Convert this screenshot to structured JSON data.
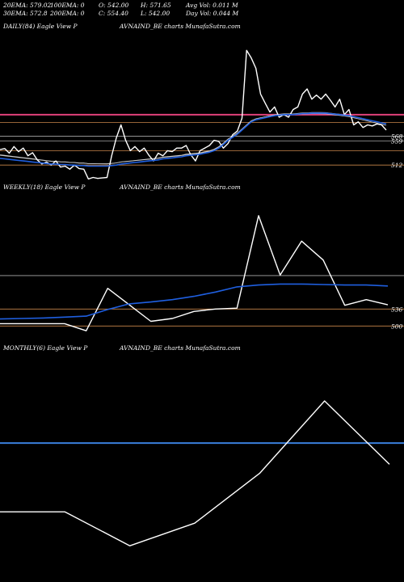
{
  "header": {
    "row1": [
      "20EMA: 579.02",
      "100EMA: 0",
      "O: 542.00",
      "H: 571.65",
      "Avg Vol: 0.011 M"
    ],
    "row2": [
      "30EMA: 572.8",
      "200EMA: 0",
      "C: 554.40",
      "L: 542.00",
      "Day Vol: 0.044 M"
    ]
  },
  "panels": {
    "daily": {
      "title": "DAILY(84) Eagle   View  P",
      "watermark": "AVNAIND_BE charts MunafaSutra.com"
    },
    "weekly": {
      "title": "WEEKLY(18) Eagle   View  P",
      "watermark": "AVNAIND_BE charts MunafaSutra.com"
    },
    "monthly": {
      "title": "MONTHLY(6) Eagle   View  P",
      "watermark": "AVNAIND_BE charts MunafaSutra.com"
    }
  },
  "colors": {
    "price": "#ffffff",
    "ema": "#1f5fe0",
    "resistance_daily": "#e0407a",
    "support": "#c8864a",
    "ema_white": "#cccccc",
    "grid_gray": "#aaaaaa",
    "monthly_band": "#3a7fdc"
  },
  "chart_data": [
    {
      "type": "line",
      "title": "DAILY(84)",
      "y_tick_labels": [
        "568",
        "559",
        "512"
      ],
      "ylim": [
        495,
        770
      ],
      "horizontal_levels": [
        {
          "value": 610,
          "color": "pink"
        },
        {
          "value": 595,
          "color": "brown"
        },
        {
          "value": 568,
          "color": "gray"
        },
        {
          "value": 559,
          "color": "gray"
        },
        {
          "value": 540,
          "color": "brown"
        },
        {
          "value": 512,
          "color": "brown"
        }
      ],
      "series": [
        {
          "values": [
            542,
            544,
            535,
            548,
            538,
            545,
            530,
            536,
            522,
            514,
            518,
            512,
            520,
            508,
            510,
            504,
            512,
            505,
            504,
            485,
            488,
            486,
            487,
            488,
            530,
            565,
            590,
            560,
            540,
            548,
            538,
            545,
            531,
            520,
            535,
            530,
            540,
            538,
            545,
            545,
            550,
            532,
            520,
            540,
            545,
            550,
            560,
            558,
            545,
            554,
            571,
            578,
            603,
            735,
            720,
            700,
            650,
            632,
            615,
            625,
            605,
            610,
            605,
            620,
            625,
            650,
            660,
            640,
            648,
            640,
            650,
            638,
            625,
            640,
            610,
            620,
            590,
            596,
            585,
            590,
            588,
            592,
            590,
            580
          ]
        },
        {
          "values": [
            525,
            524,
            523,
            522,
            521,
            520,
            519,
            518,
            517,
            516,
            515,
            514,
            514,
            513,
            513,
            512,
            512,
            511,
            511,
            510,
            510,
            510,
            510,
            510,
            511,
            512,
            514,
            515,
            516,
            517,
            518,
            519,
            520,
            521,
            522,
            524,
            525,
            526,
            527,
            528,
            530,
            531,
            532,
            533,
            535,
            537,
            540,
            545,
            552,
            560,
            566,
            572,
            580,
            588,
            596,
            600,
            602,
            604,
            606,
            608,
            609,
            610,
            610,
            610,
            611,
            612,
            612,
            613,
            613,
            613,
            613,
            612,
            611,
            610,
            609,
            608,
            606,
            604,
            602,
            600,
            598,
            596,
            594,
            592
          ]
        }
      ]
    },
    {
      "type": "line",
      "title": "WEEKLY(18)",
      "y_tick_labels": [
        "536",
        "500"
      ],
      "ylim": [
        480,
        780
      ],
      "horizontal_levels": [
        {
          "value": 607,
          "color": "gray"
        },
        {
          "value": 536,
          "color": "brown"
        },
        {
          "value": 500,
          "color": "brown"
        }
      ],
      "series": [
        {
          "values": [
            505,
            505,
            505,
            505,
            490,
            580,
            545,
            510,
            516,
            531,
            536,
            538,
            734,
            608,
            680,
            640,
            544,
            556,
            545
          ]
        },
        {
          "values": [
            515,
            516,
            517,
            519,
            521,
            535,
            547,
            551,
            556,
            563,
            572,
            583,
            587,
            589,
            589,
            588,
            587,
            587,
            585
          ]
        }
      ]
    },
    {
      "type": "line",
      "title": "MONTHLY(6)",
      "horizontal_levels": [
        {
          "value": 607,
          "color": "blue"
        }
      ],
      "series": [
        {
          "values": [
            455,
            455,
            380,
            430,
            540,
            700,
            560
          ]
        }
      ]
    }
  ]
}
